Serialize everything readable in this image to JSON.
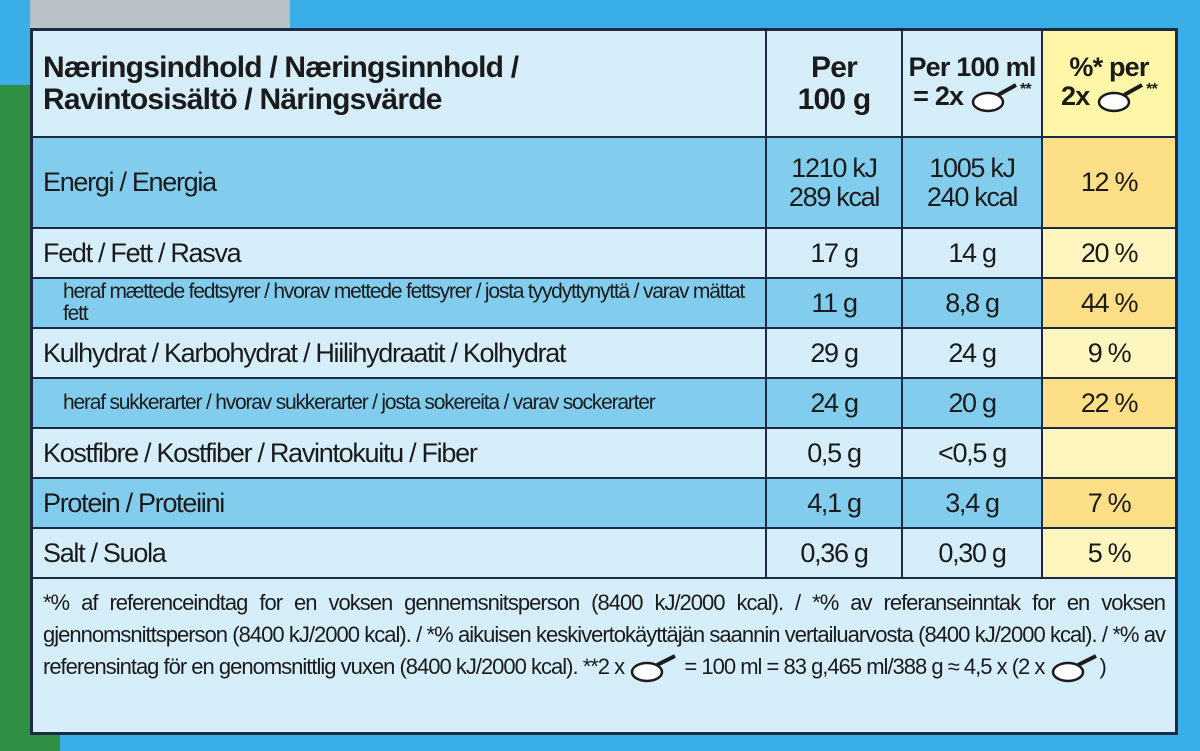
{
  "header": {
    "title_lines": [
      "Næringsindhold / Næringsinnhold /",
      "Ravintosisältö / Näringsvärde"
    ],
    "per_100g": [
      "Per",
      "100 g"
    ],
    "per_100ml": {
      "line1": "Per 100 ml",
      "prefix": "= 2x",
      "suffix": "**"
    },
    "percent": {
      "line1": "%* per",
      "prefix": "2x",
      "suffix": "**"
    }
  },
  "rows": [
    {
      "label": "Energi / Energia",
      "per_100g": [
        "1210 kJ",
        "289 kcal"
      ],
      "per_100ml": [
        "1005 kJ",
        "240 kcal"
      ],
      "percent": "12 %"
    },
    {
      "label": "Fedt / Fett / Rasva",
      "per_100g": [
        "17 g"
      ],
      "per_100ml": [
        "14 g"
      ],
      "percent": "20 %"
    },
    {
      "label": "heraf mættede fedtsyrer / hvorav mettede fettsyrer / josta tyydyttynyttä / varav mättat fett",
      "per_100g": [
        "11 g"
      ],
      "per_100ml": [
        "8,8 g"
      ],
      "percent": "44 %"
    },
    {
      "label": "Kulhydrat / Karbohydrat / Hiilihydraatit / Kolhydrat",
      "per_100g": [
        "29 g"
      ],
      "per_100ml": [
        "24 g"
      ],
      "percent": "9 %"
    },
    {
      "label": "heraf sukkerarter / hvorav sukkerarter / josta sokereita / varav sockerarter",
      "per_100g": [
        "24 g"
      ],
      "per_100ml": [
        "20 g"
      ],
      "percent": "22 %"
    },
    {
      "label": "Kostfibre / Kostfiber / Ravintokuitu / Fiber",
      "per_100g": [
        "0,5 g"
      ],
      "per_100ml": [
        "<0,5 g"
      ],
      "percent": null
    },
    {
      "label": "Protein / Proteiini",
      "per_100g": [
        "4,1 g"
      ],
      "per_100ml": [
        "3,4 g"
      ],
      "percent": "7 %"
    },
    {
      "label": "Salt / Suola",
      "per_100g": [
        "0,36 g"
      ],
      "per_100ml": [
        "0,30 g"
      ],
      "percent": "5 %"
    }
  ],
  "footnote": {
    "text": "*% af referenceindtag for en voksen gennemsnitsperson (8400 kJ/2000 kcal). / *% av referanseinntak for en voksen gjennomsnittsperson (8400 kJ/2000 kcal). / *% aikuisen keskivertokäyttäjän saannin vertailuarvosta (8400 kJ/2000 kcal). / *% av referensintag för en genomsnittlig vuxen (8400 kJ/2000 kcal).",
    "serving_prefix": "**2 x",
    "serving_middle": "= 100 ml = 83 g,465 ml/388 g ≈ 4,5 x (2 x",
    "serving_suffix": ")"
  }
}
